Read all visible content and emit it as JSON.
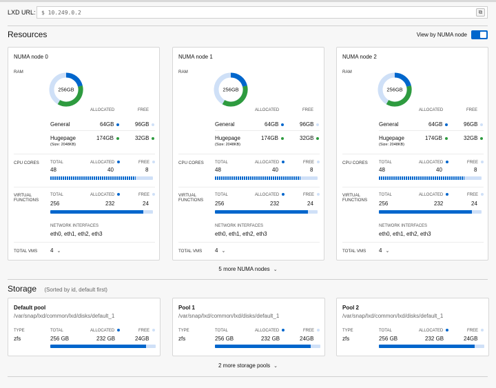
{
  "url": {
    "label": "LXD URL:",
    "value": "$ 10.249.0.2"
  },
  "resources": {
    "title": "Resources",
    "toggle_label": "View by NUMA node",
    "nodes": [
      {
        "name": "NUMA node 0",
        "ram_label": "RAM",
        "donut_text": "256GB",
        "allocated_label": "ALLOCATED",
        "free_label": "FREE",
        "general_label": "General",
        "general_alloc": "64GB",
        "general_free": "96GB",
        "hugepage_label": "Hugepage",
        "hugepage_size": "(Size: 2048KB)",
        "hugepage_alloc": "174GB",
        "hugepage_free": "32GB",
        "cpu_label": "CPU CORES",
        "cpu_total_label": "TOTAL",
        "cpu_allocated_label": "ALLOCATED",
        "cpu_free_label": "FREE",
        "cpu_total": "48",
        "cpu_alloc": "40",
        "cpu_free": "8",
        "cpu_fraction": 0.833,
        "vf_label_1": "VIRTUAL",
        "vf_label_2": "FUNCTIONS",
        "vf_total_label": "TOTAL",
        "vf_allocated_label": "ALLOCATED",
        "vf_free_label": "FREE",
        "vf_total": "256",
        "vf_alloc": "232",
        "vf_free": "24",
        "vf_fraction": 0.906,
        "net_label": "NETWORK INTERFACES",
        "net_value": "eth0, eth1, eth2, eth3",
        "vms_label": "TOTAL VMS",
        "vms_value": "4"
      },
      {
        "name": "NUMA node 1",
        "ram_label": "RAM",
        "donut_text": "256GB",
        "allocated_label": "ALLOCATED",
        "free_label": "FREE",
        "general_label": "General",
        "general_alloc": "64GB",
        "general_free": "96GB",
        "hugepage_label": "Hugepage",
        "hugepage_size": "(Size: 2048KB)",
        "hugepage_alloc": "174GB",
        "hugepage_free": "32GB",
        "cpu_label": "CPU CORES",
        "cpu_total_label": "TOTAL",
        "cpu_allocated_label": "ALLOCATED",
        "cpu_free_label": "FREE",
        "cpu_total": "48",
        "cpu_alloc": "40",
        "cpu_free": "8",
        "cpu_fraction": 0.833,
        "vf_label_1": "VIRTUAL",
        "vf_label_2": "FUNCTIONS",
        "vf_total_label": "TOTAL",
        "vf_allocated_label": "ALLOCATED",
        "vf_free_label": "FREE",
        "vf_total": "256",
        "vf_alloc": "232",
        "vf_free": "24",
        "vf_fraction": 0.906,
        "net_label": "NETWORK INTERFACES",
        "net_value": "eth0, eth1, eth2, eth3",
        "vms_label": "TOTAL VMS",
        "vms_value": "4"
      },
      {
        "name": "NUMA node 2",
        "ram_label": "RAM",
        "donut_text": "256GB",
        "allocated_label": "ALLOCATED",
        "free_label": "FREE",
        "general_label": "General",
        "general_alloc": "64GB",
        "general_free": "96GB",
        "hugepage_label": "Hugepage",
        "hugepage_size": "(Size: 2048KB)",
        "hugepage_alloc": "174GB",
        "hugepage_free": "32GB",
        "cpu_label": "CPU CORES",
        "cpu_total_label": "TOTAL",
        "cpu_allocated_label": "ALLOCATED",
        "cpu_free_label": "FREE",
        "cpu_total": "48",
        "cpu_alloc": "40",
        "cpu_free": "8",
        "cpu_fraction": 0.833,
        "vf_label_1": "VIRTUAL",
        "vf_label_2": "FUNCTIONS",
        "vf_total_label": "TOTAL",
        "vf_allocated_label": "ALLOCATED",
        "vf_free_label": "FREE",
        "vf_total": "256",
        "vf_alloc": "232",
        "vf_free": "24",
        "vf_fraction": 0.906,
        "net_label": "NETWORK INTERFACES",
        "net_value": "eth0, eth1, eth2, eth3",
        "vms_label": "TOTAL VMS",
        "vms_value": "4"
      }
    ],
    "more_label": "5 more NUMA nodes"
  },
  "storage": {
    "title": "Storage",
    "subtitle": "(Sorted by id, default first)",
    "pools": [
      {
        "name": "Default pool",
        "path": "/var/snap/lxd/common/lxd/disks/default_1",
        "type_label": "TYPE",
        "type_value": "zfs",
        "total_label": "TOTAL",
        "allocated_label": "ALLOCATED",
        "free_label": "FREE",
        "total_value": "256 GB",
        "allocated_value": "232 GB",
        "free_value": "24GB",
        "fraction": 0.906
      },
      {
        "name": "Pool 1",
        "path": "/var/snap/lxd/common/lxd/disks/default_1",
        "type_label": "TYPE",
        "type_value": "zfs",
        "total_label": "TOTAL",
        "allocated_label": "ALLOCATED",
        "free_label": "FREE",
        "total_value": "256 GB",
        "allocated_value": "232 GB",
        "free_value": "24GB",
        "fraction": 0.906
      },
      {
        "name": "Pool 2",
        "path": "/var/snap/lxd/common/lxd/disks/default_1",
        "type_label": "TYPE",
        "type_value": "zfs",
        "total_label": "TOTAL",
        "allocated_label": "ALLOCATED",
        "free_label": "FREE",
        "total_value": "256 GB",
        "allocated_value": "232 GB",
        "free_value": "24GB",
        "fraction": 0.906
      }
    ],
    "more_label": "2 more storage pools"
  },
  "colors": {
    "accent": "#0066cc",
    "green": "#2e9b3f",
    "light_blue": "#cfe0f7",
    "border": "#d7d7d7"
  }
}
